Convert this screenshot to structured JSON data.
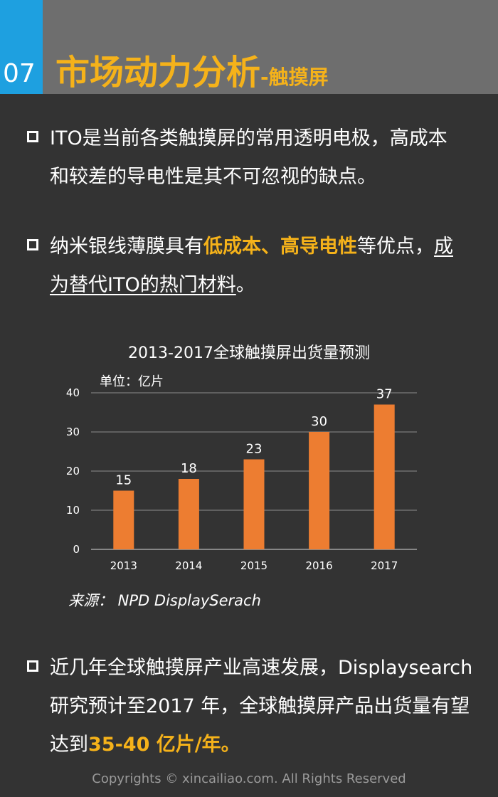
{
  "header": {
    "number": "07",
    "title_main": "市场动力分析",
    "title_sub": "-触摸屏"
  },
  "bullet1": {
    "line1": "ITO是当前各类触摸屏的常用透明电极，高成本",
    "line2": "和较差的导电性是其不可忽视的缺点。"
  },
  "bullet2": {
    "pre": "纳米银线薄膜具有",
    "highlight": "低成本、高导电性",
    "mid": "等优点，",
    "underline1": "成",
    "underline2": "为替代ITO的热门材料",
    "end": "。"
  },
  "bullet3": {
    "line1": "近几年全球触摸屏产业高速发展，Displaysearch",
    "line2": "研究预计至2017 年，全球触摸屏产品出货量有望",
    "line3_pre": "达到",
    "line3_hl": "35-40 亿片/年。"
  },
  "source": "来源： NPD DisplaySerach",
  "copyright": "Copyrights © xincailiao.com. All Rights Reserved",
  "colors": {
    "accent": "#f5b21a",
    "bar": "#ed7d31",
    "header_bg": "#6e6e6e",
    "number_bg": "#1ea0e0"
  },
  "chart_data": {
    "type": "bar",
    "title": "2013-2017全球触摸屏出货量预测",
    "unit": "单位：亿片",
    "categories": [
      "2013",
      "2014",
      "2015",
      "2016",
      "2017"
    ],
    "values": [
      15,
      18,
      23,
      30,
      37
    ],
    "yticks": [
      "0",
      "10",
      "20",
      "30",
      "40"
    ],
    "ylim": [
      0,
      40
    ],
    "grid": true
  }
}
